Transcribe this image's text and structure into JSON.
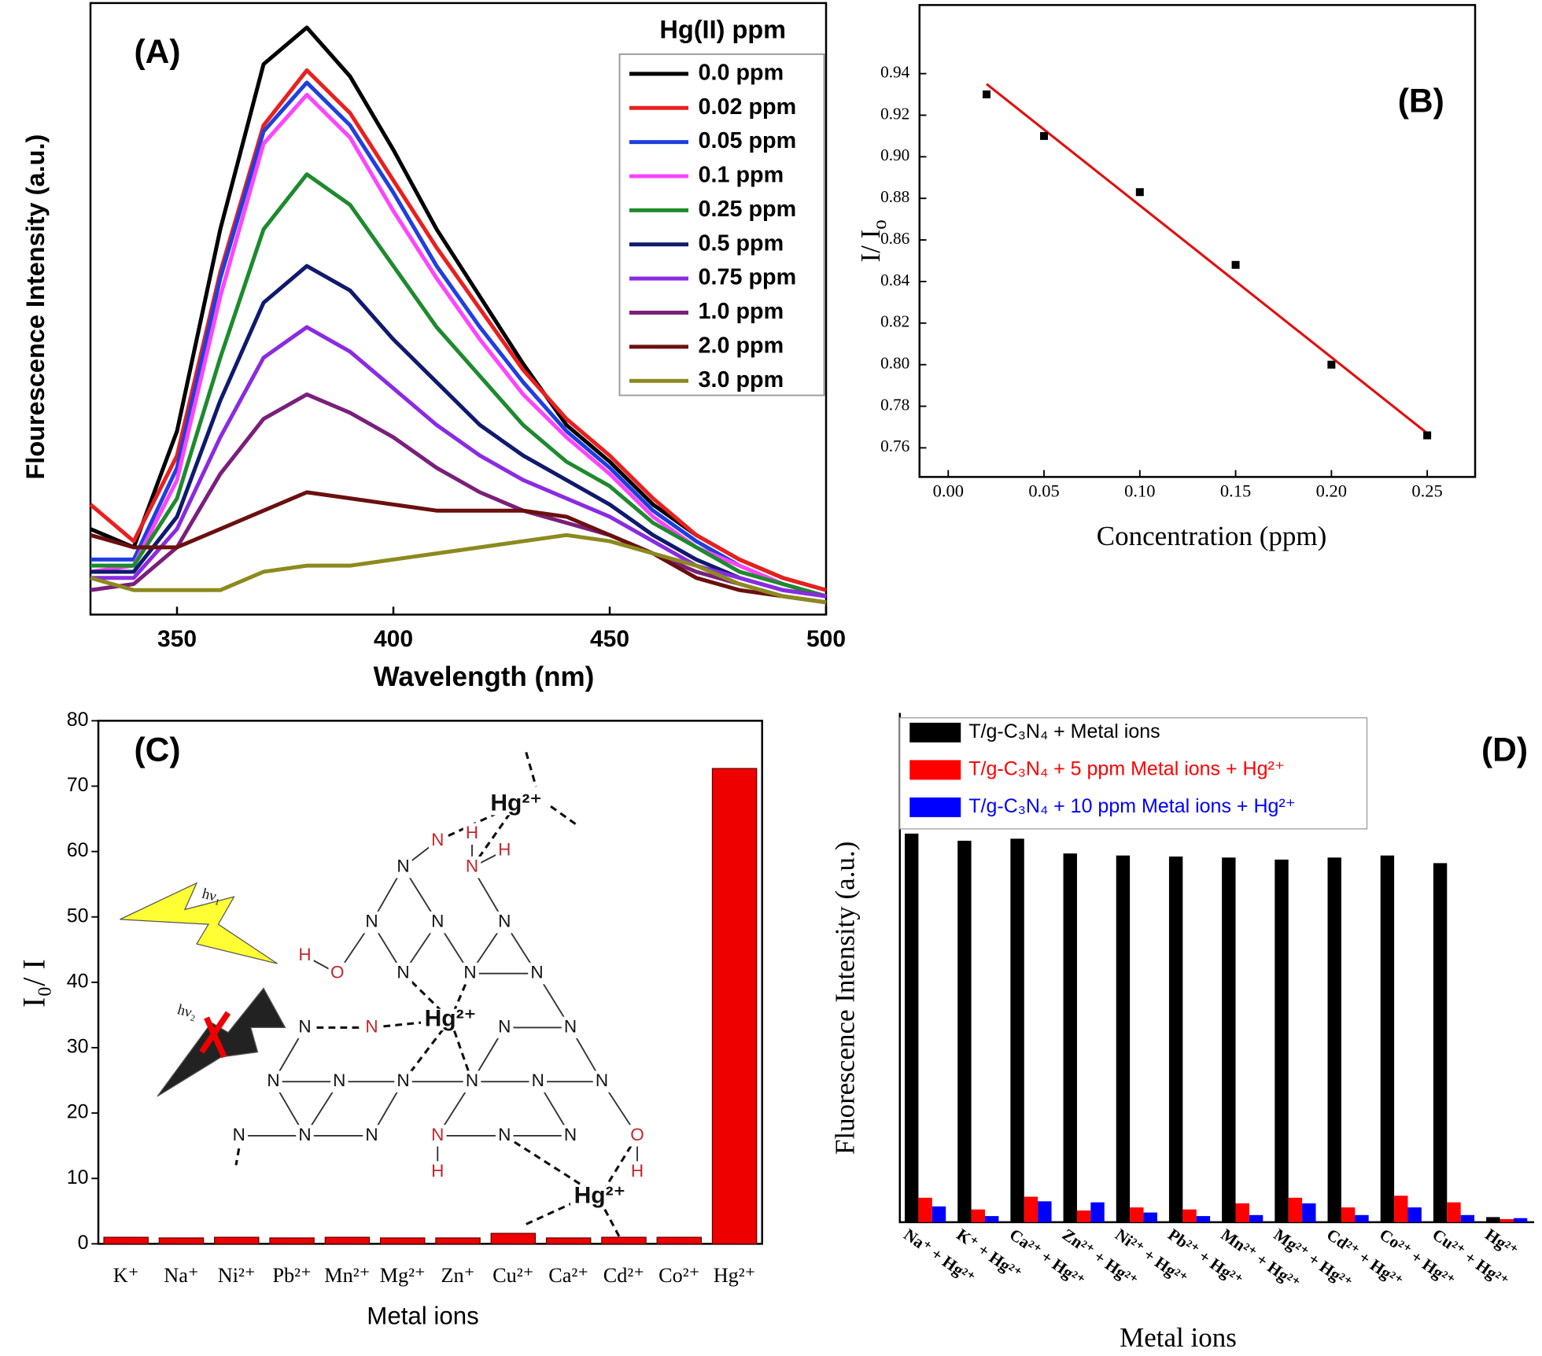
{
  "chart_data": [
    {
      "type": "line",
      "panel_label": "(A)",
      "xlabel": "Wavelength (nm)",
      "ylabel": "Flourescence Intensity (a.u.)",
      "legend_title": "Hg(II) ppm",
      "legend": "upper right",
      "x": [
        330,
        340,
        350,
        360,
        370,
        380,
        390,
        400,
        410,
        420,
        430,
        440,
        450,
        460,
        470,
        480,
        490,
        500
      ],
      "xlim": [
        330,
        500
      ],
      "xticks": [
        350,
        400,
        450,
        500
      ],
      "ylim": [
        0,
        100
      ],
      "series": [
        {
          "name": "0.0 ppm",
          "color": "#000000",
          "values": [
            14,
            11,
            30,
            63,
            90,
            96,
            88,
            76,
            63,
            52,
            41,
            31,
            25,
            18,
            13,
            9,
            6,
            4
          ]
        },
        {
          "name": "0.02 ppm",
          "color": "#e8201f",
          "values": [
            18,
            12,
            26,
            56,
            80,
            89,
            82,
            71,
            60,
            50,
            40,
            32,
            26,
            19,
            13,
            9,
            6,
            4
          ]
        },
        {
          "name": "0.05 ppm",
          "color": "#1f3fe0",
          "values": [
            9,
            9,
            24,
            55,
            79,
            87,
            80,
            69,
            57,
            47,
            38,
            30,
            24,
            17,
            12,
            8,
            5,
            3
          ]
        },
        {
          "name": "0.1 ppm",
          "color": "#ff44ff",
          "values": [
            7,
            8,
            22,
            52,
            77,
            85,
            78,
            66,
            55,
            45,
            36,
            29,
            23,
            16,
            11,
            8,
            5,
            3
          ]
        },
        {
          "name": "0.25 ppm",
          "color": "#1e8a2e",
          "values": [
            8,
            8,
            19,
            42,
            63,
            72,
            67,
            57,
            47,
            39,
            31,
            25,
            21,
            15,
            11,
            7,
            5,
            3
          ]
        },
        {
          "name": "0.5 ppm",
          "color": "#0f1a6e",
          "values": [
            7,
            7,
            16,
            35,
            51,
            57,
            53,
            45,
            38,
            31,
            26,
            22,
            18,
            13,
            9,
            6,
            4,
            3
          ]
        },
        {
          "name": "0.75 ppm",
          "color": "#8a2be2",
          "values": [
            6,
            6,
            14,
            29,
            42,
            47,
            43,
            37,
            31,
            26,
            22,
            19,
            16,
            12,
            8,
            6,
            4,
            3
          ]
        },
        {
          "name": "1.0 ppm",
          "color": "#7b1f7b",
          "values": [
            4,
            5,
            11,
            23,
            32,
            36,
            33,
            29,
            24,
            20,
            17,
            15,
            13,
            10,
            7,
            5,
            3,
            2
          ]
        },
        {
          "name": "2.0 ppm",
          "color": "#6b0f0f",
          "values": [
            13,
            11,
            11,
            14,
            17,
            20,
            19,
            18,
            17,
            17,
            17,
            16,
            13,
            10,
            6,
            4,
            3,
            2
          ]
        },
        {
          "name": "3.0 ppm",
          "color": "#8c8a1e",
          "values": [
            6,
            4,
            4,
            4,
            7,
            8,
            8,
            9,
            10,
            11,
            12,
            13,
            12,
            10,
            8,
            5,
            3,
            2
          ]
        }
      ]
    },
    {
      "type": "scatter",
      "panel_label": "(B)",
      "xlabel": "Concentration (ppm)",
      "ylabel": "I/ I",
      "ylabel_sub": "o",
      "x": [
        0.02,
        0.05,
        0.1,
        0.15,
        0.2,
        0.25
      ],
      "values": [
        0.93,
        0.91,
        0.883,
        0.848,
        0.8,
        0.766
      ],
      "color": "#000000",
      "fit": {
        "x": [
          0.02,
          0.25
        ],
        "values": [
          0.935,
          0.767
        ],
        "color": "#e01010"
      },
      "xlim": [
        -0.015,
        0.275
      ],
      "ylim": [
        0.746,
        0.973
      ],
      "xticks": [
        {
          "value": 0,
          "label": "0.00"
        },
        0.05,
        {
          "value": 0.1,
          "label": "0.10"
        },
        0.15,
        {
          "value": 0.2,
          "label": "0.20"
        },
        0.25
      ],
      "yticks": [
        0.76,
        0.78,
        {
          "value": 0.8,
          "label": "0.80"
        },
        0.82,
        0.84,
        0.86,
        0.88,
        {
          "value": 0.9,
          "label": "0.90"
        },
        0.92,
        0.94
      ]
    },
    {
      "type": "bar",
      "panel_label": "(C)",
      "xlabel": "Metal ions",
      "ylabel": "I₀/ I",
      "categories": [
        "K⁺",
        "Na⁺",
        "Ni²⁺",
        "Pb²⁺",
        "Mn²⁺",
        "Mg²⁺",
        "Zn⁺",
        "Cu²⁺",
        "Ca²⁺",
        "Cd²⁺",
        "Co²⁺",
        "Hg²⁺"
      ],
      "values": [
        1.0,
        0.9,
        1.0,
        0.9,
        1.0,
        0.9,
        0.9,
        1.6,
        0.9,
        1.0,
        1.0,
        72.7
      ],
      "color": "#ee0000",
      "ylim": [
        0,
        80
      ],
      "yticks": [
        0,
        10,
        20,
        30,
        40,
        50,
        60,
        70,
        80
      ]
    },
    {
      "type": "grouped_bar",
      "panel_label": "(D)",
      "xlabel": "Metal ions",
      "ylabel": "Fluorescence Intensity (a.u.)",
      "legend": "upper left",
      "categories": [
        "Na⁺ + Hg²⁺",
        "K⁺ + Hg²⁺",
        "Ca²⁺ + Hg²⁺",
        "Zn²⁺ + Hg²⁺",
        "Ni²⁺ + Hg²⁺",
        "Pb²⁺ + Hg²⁺",
        "Mn²⁺ + Hg²⁺",
        "Mg²⁺ + Hg²⁺",
        "Cd²⁺ + Hg²⁺",
        "Co²⁺ + Hg²⁺",
        "Cu²⁺ + Hg²⁺",
        "Hg²⁺"
      ],
      "ylim": [
        0,
        100
      ],
      "series": [
        {
          "name": "T/g-C₃N₄ + Metal ions",
          "color": "#000000",
          "values": [
            76.3,
            74.9,
            75.3,
            72.4,
            72.0,
            71.8,
            71.6,
            71.2,
            71.6,
            72.0,
            70.5,
            1.0
          ]
        },
        {
          "name": "T/g-C₃N₄ + 5 ppm Metal ions + Hg²⁺",
          "color": "#ff0000",
          "values": [
            4.8,
            2.5,
            5.0,
            2.3,
            2.9,
            2.5,
            3.7,
            4.8,
            2.9,
            5.2,
            3.9,
            0.6
          ]
        },
        {
          "name": "T/g-C₃N₄ + 10 ppm Metal ions + Hg²⁺",
          "color": "#0000ff",
          "values": [
            3.1,
            1.2,
            4.1,
            3.9,
            1.9,
            1.2,
            1.4,
            3.7,
            1.4,
            2.9,
            1.4,
            0.8
          ]
        }
      ]
    }
  ],
  "structure": {
    "labels": [
      "N",
      "Hg²⁺",
      "H",
      "H",
      "N",
      "N",
      "N",
      "N",
      "N",
      "H",
      "O",
      "N",
      "N",
      "N",
      "Hg²⁺",
      "N",
      "N",
      "N",
      "N",
      "N",
      "N",
      "N",
      "N",
      "N",
      "N",
      "N",
      "N",
      "N",
      "N",
      "N",
      "N",
      "O",
      "H",
      "H",
      "Hg²⁺",
      "hν₁",
      "hν₂"
    ]
  }
}
